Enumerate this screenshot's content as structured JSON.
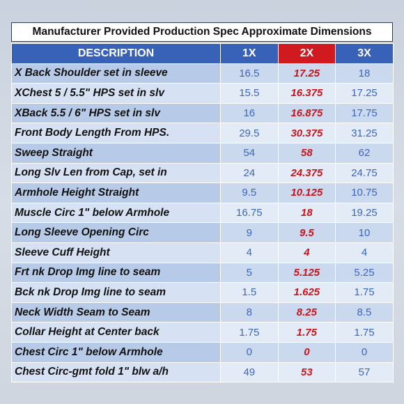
{
  "title": "Manufacturer Provided Production Spec Approximate Dimensions",
  "headers": [
    "DESCRIPTION",
    "1X",
    "2X",
    "3X"
  ],
  "highlight_color": "#d11a1f",
  "header_color": "#3862b8",
  "rows": [
    {
      "desc": "X Back Shoulder set in sleeve",
      "v1": "16.5",
      "v2": "17.25",
      "v3": "18"
    },
    {
      "desc": "XChest 5 / 5.5\" HPS set in slv",
      "v1": "15.5",
      "v2": "16.375",
      "v3": "17.25"
    },
    {
      "desc": "XBack 5.5 / 6\" HPS set in slv",
      "v1": "16",
      "v2": "16.875",
      "v3": "17.75"
    },
    {
      "desc": "Front Body Length From HPS.",
      "v1": "29.5",
      "v2": "30.375",
      "v3": "31.25"
    },
    {
      "desc": "Sweep Straight",
      "v1": "54",
      "v2": "58",
      "v3": "62"
    },
    {
      "desc": "Long Slv Len from Cap, set in",
      "v1": "24",
      "v2": "24.375",
      "v3": "24.75"
    },
    {
      "desc": "Armhole Height Straight",
      "v1": "9.5",
      "v2": "10.125",
      "v3": "10.75"
    },
    {
      "desc": "Muscle Circ 1\" below Armhole",
      "v1": "16.75",
      "v2": "18",
      "v3": "19.25"
    },
    {
      "desc": "Long Sleeve Opening Circ",
      "v1": "9",
      "v2": "9.5",
      "v3": "10"
    },
    {
      "desc": "Sleeve Cuff Height",
      "v1": "4",
      "v2": "4",
      "v3": "4"
    },
    {
      "desc": "Frt nk Drop Img line to seam",
      "v1": "5",
      "v2": "5.125",
      "v3": "5.25"
    },
    {
      "desc": "Bck nk Drop Img line to seam",
      "v1": "1.5",
      "v2": "1.625",
      "v3": "1.75"
    },
    {
      "desc": "Neck Width Seam to Seam",
      "v1": "8",
      "v2": "8.25",
      "v3": "8.5"
    },
    {
      "desc": "Collar Height at Center back",
      "v1": "1.75",
      "v2": "1.75",
      "v3": "1.75"
    },
    {
      "desc": "Chest Circ 1\" below Armhole",
      "v1": "0",
      "v2": "0",
      "v3": "0"
    },
    {
      "desc": "Chest Circ-gmt fold 1\" blw a/h",
      "v1": "49",
      "v2": "53",
      "v3": "57"
    }
  ]
}
